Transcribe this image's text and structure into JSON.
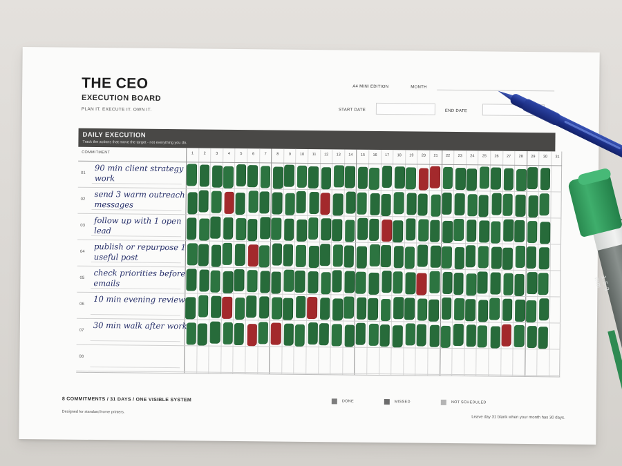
{
  "header": {
    "title": "THE CEO",
    "subtitle": "EXECUTION BOARD",
    "tagline": "PLAN IT. EXECUTE IT. OWN IT.",
    "edition": "A4 MINI EDITION",
    "month_label": "MONTH",
    "start_label": "START DATE",
    "end_label": "END DATE"
  },
  "section": {
    "title": "DAILY EXECUTION",
    "subtitle": "Track the actions that move the target - not everything you do."
  },
  "table": {
    "commitment_header": "COMMITMENT",
    "days": [
      "1",
      "2",
      "3",
      "4",
      "5",
      "6",
      "7",
      "8",
      "9",
      "10",
      "11",
      "12",
      "13",
      "14",
      "15",
      "16",
      "17",
      "18",
      "19",
      "20",
      "21",
      "22",
      "23",
      "24",
      "25",
      "26",
      "27",
      "28",
      "29",
      "30",
      "31"
    ],
    "rows": [
      {
        "num": "01",
        "text": "90 min client strategy work",
        "days_marked": 30,
        "missed": [
          20,
          21
        ]
      },
      {
        "num": "02",
        "text": "send 3 warm outreach messages",
        "days_marked": 30,
        "missed": [
          4,
          12
        ]
      },
      {
        "num": "03",
        "text": "follow up with 1 open lead",
        "days_marked": 30,
        "missed": [
          17
        ]
      },
      {
        "num": "04",
        "text": "publish or repurpose 1 useful post",
        "days_marked": 30,
        "missed": [
          6
        ]
      },
      {
        "num": "05",
        "text": "check priorities before emails",
        "days_marked": 30,
        "missed": [
          20
        ]
      },
      {
        "num": "06",
        "text": "10 min evening review",
        "days_marked": 30,
        "missed": [
          4,
          11
        ]
      },
      {
        "num": "07",
        "text": "30 min walk after work",
        "days_marked": 30,
        "missed": [
          6,
          8,
          27
        ]
      },
      {
        "num": "08",
        "text": "",
        "days_marked": 0,
        "missed": []
      }
    ]
  },
  "footer": {
    "summary": "8 COMMITMENTS  /  31 DAYS  /  ONE VISIBLE SYSTEM",
    "note": "Designed for standard home printers.",
    "month_note": "Leave day 31 blank when your month has 30 days."
  },
  "legend": [
    {
      "label": "DONE",
      "color": "#7d7d7d"
    },
    {
      "label": "MISSED",
      "color": "#6c6c6c"
    },
    {
      "label": "NOT SCHEDULED",
      "color": "#b4b4b4"
    }
  ],
  "colors": {
    "done": "#276b3a",
    "missed": "#a3292c",
    "pen": "#1c2f86",
    "marker": "#3fae6c"
  },
  "objects": {
    "pen_icon": "ballpoint-pen",
    "marker_icon": "green-marker",
    "marker_text": "1.5-3 mm"
  }
}
